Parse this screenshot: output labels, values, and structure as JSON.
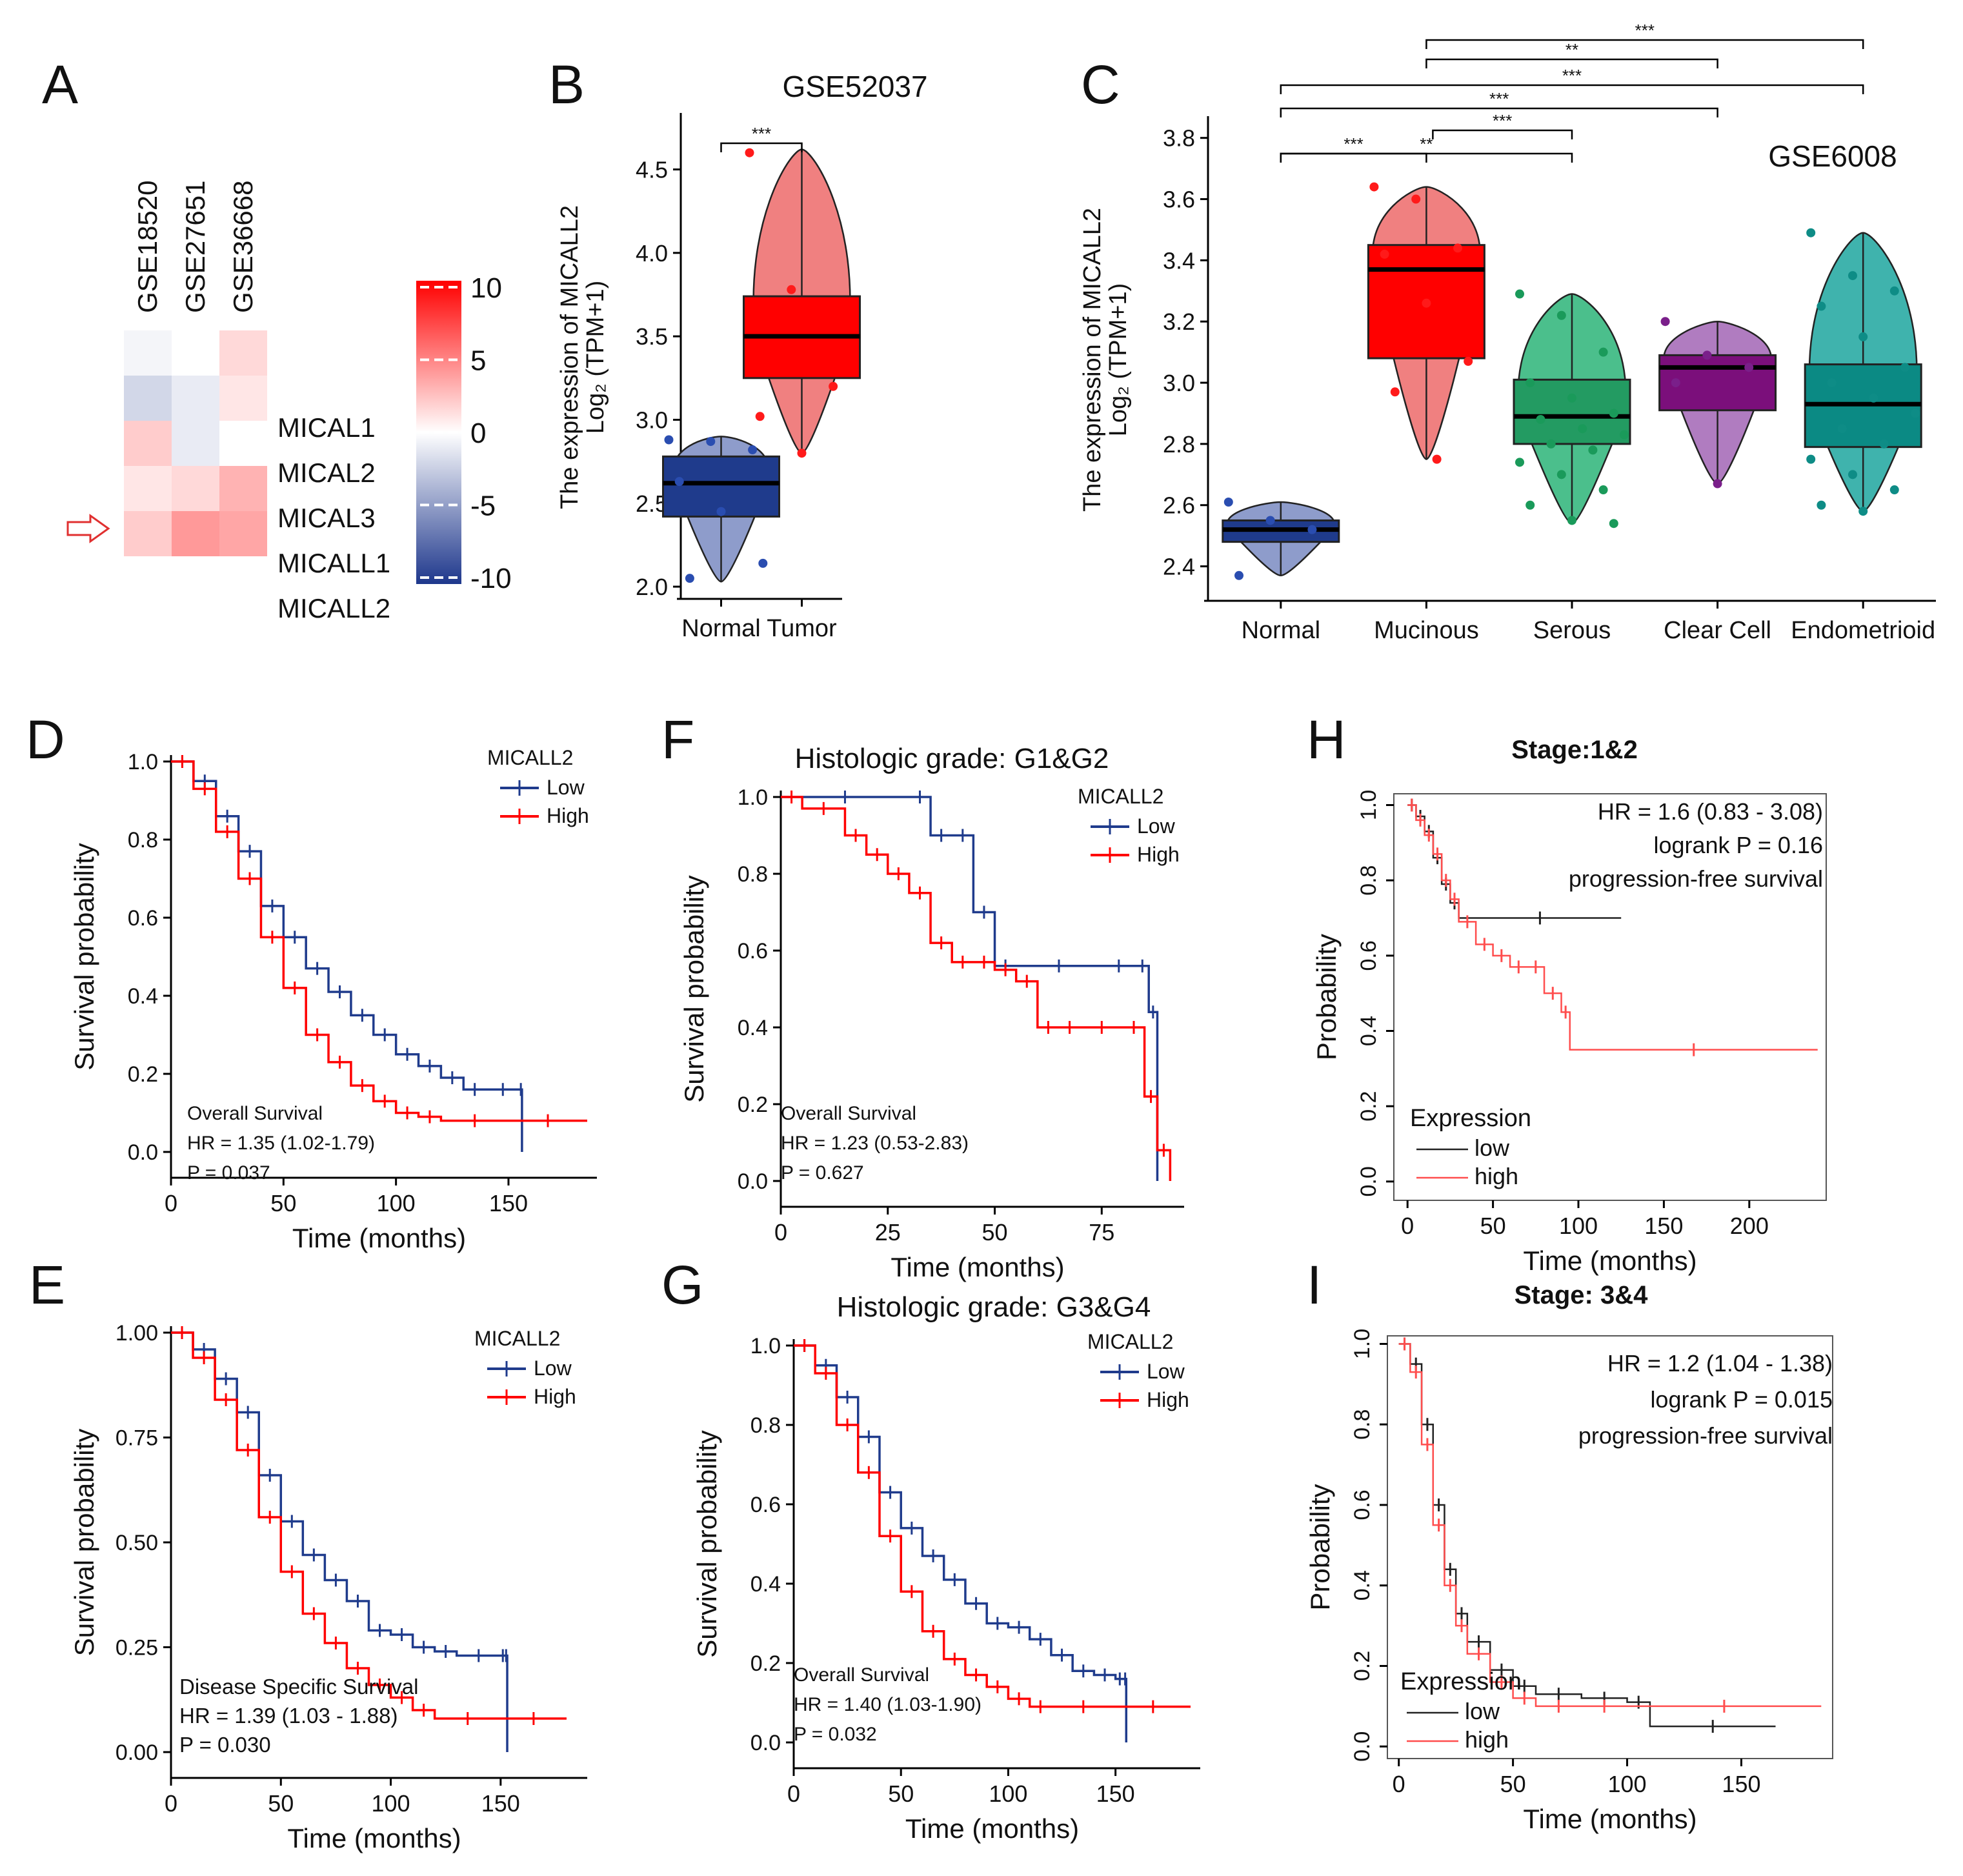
{
  "panel_letters": [
    "A",
    "B",
    "C",
    "D",
    "E",
    "F",
    "G",
    "H",
    "I"
  ],
  "colors": {
    "normal_box": "#1f3b8c",
    "normal_violin": "#8e9ccb",
    "tumor_box": "#ff0000",
    "tumor_violin": "#f08080",
    "serous": "#239b62",
    "clearcell": "#7b0f7b",
    "endometrioid": "#0b8a84",
    "km_low": "#1f3b8c",
    "km_high": "#ff0000",
    "kmp_low": "#222222",
    "kmp_high": "#ff4d4d"
  },
  "chart_data": [
    {
      "panel": "A",
      "type": "heatmap",
      "columns": [
        "GSE18520",
        "GSE27651",
        "GSE36668"
      ],
      "rows": [
        "",
        "MICAL1",
        "MICAL2",
        "MICAL3",
        "MICALL1",
        "MICALL2"
      ],
      "values": [
        [
          -0.5,
          0,
          1.5
        ],
        [
          -2,
          -1,
          1
        ],
        [
          2,
          -1,
          0
        ],
        [
          1,
          1.5,
          3
        ],
        [
          2,
          4,
          3.5
        ]
      ],
      "colorbar": {
        "ticks": [
          "10",
          "5",
          "0",
          "-5",
          "-10"
        ],
        "range": [
          -10,
          10
        ]
      },
      "highlight": "MICALL2"
    },
    {
      "panel": "B",
      "type": "box",
      "title": "GSE52037",
      "ylabel_line1": "The expression of MICALL2",
      "ylabel_line2": "Log₂ (TPM+1)",
      "ylim": [
        1.95,
        4.8
      ],
      "yticks": [
        "2.0",
        "2.5",
        "3.0",
        "3.5",
        "4.0",
        "4.5"
      ],
      "categories": [
        "Normal",
        "Tumor"
      ],
      "boxes": [
        {
          "name": "Normal",
          "q1": 2.42,
          "median": 2.62,
          "q3": 2.78,
          "min": 2.03,
          "max": 2.9
        },
        {
          "name": "Tumor",
          "q1": 3.25,
          "median": 3.5,
          "q3": 3.74,
          "min": 2.8,
          "max": 4.62
        }
      ],
      "points": [
        [
          2.88,
          2.87,
          2.82,
          2.63,
          2.45,
          2.14,
          2.05
        ],
        [
          4.6,
          3.78,
          3.2,
          3.02,
          2.8
        ]
      ],
      "sig": [
        {
          "from": 0,
          "to": 1,
          "label": "***"
        }
      ]
    },
    {
      "panel": "C",
      "type": "box",
      "title": "GSE6008",
      "ylabel_line1": "The expression of MICALL2",
      "ylabel_line2": "Log₂ (TPM+1)",
      "ylim": [
        2.3,
        3.85
      ],
      "yticks": [
        "2.4",
        "2.6",
        "2.8",
        "3.0",
        "3.2",
        "3.4",
        "3.6",
        "3.8"
      ],
      "categories": [
        "Normal",
        "Mucinous",
        "Serous",
        "Clear Cell",
        "Endometrioid"
      ],
      "boxes": [
        {
          "name": "Normal",
          "q1": 2.48,
          "median": 2.52,
          "q3": 2.55,
          "min": 2.37,
          "max": 2.61
        },
        {
          "name": "Mucinous",
          "q1": 3.08,
          "median": 3.37,
          "q3": 3.45,
          "min": 2.75,
          "max": 3.64
        },
        {
          "name": "Serous",
          "q1": 2.8,
          "median": 2.89,
          "q3": 3.01,
          "min": 2.54,
          "max": 3.29
        },
        {
          "name": "Clear Cell",
          "q1": 2.91,
          "median": 3.05,
          "q3": 3.09,
          "min": 2.67,
          "max": 3.2
        },
        {
          "name": "Endometrioid",
          "q1": 2.79,
          "median": 2.93,
          "q3": 3.06,
          "min": 2.58,
          "max": 3.49
        }
      ],
      "points": [
        [
          2.61,
          2.55,
          2.52,
          2.37
        ],
        [
          3.64,
          3.6,
          3.44,
          3.42,
          3.26,
          3.07,
          2.97,
          2.75
        ],
        [
          3.29,
          3.22,
          3.1,
          3.0,
          2.95,
          2.9,
          2.88,
          2.85,
          2.83,
          2.8,
          2.78,
          2.74,
          2.7,
          2.65,
          2.6,
          2.55,
          2.54
        ],
        [
          3.2,
          3.09,
          3.05,
          3.0,
          2.67
        ],
        [
          3.49,
          3.35,
          3.3,
          3.25,
          3.15,
          3.05,
          3.0,
          2.95,
          2.9,
          2.85,
          2.8,
          2.75,
          2.7,
          2.65,
          2.6,
          2.58
        ]
      ],
      "sig": [
        {
          "from": 0,
          "to": 1,
          "label": "***"
        },
        {
          "from": 1,
          "to": 2,
          "label": "***"
        },
        {
          "from": 0,
          "to": 2,
          "label": "**"
        },
        {
          "from": 0,
          "to": 3,
          "label": "***"
        },
        {
          "from": 0,
          "to": 4,
          "label": "***"
        },
        {
          "from": 1,
          "to": 3,
          "label": "**"
        },
        {
          "from": 1,
          "to": 4,
          "label": "***"
        }
      ]
    },
    {
      "panel": "D",
      "type": "line",
      "style": "km",
      "ylabel": "Survival probability",
      "xlabel": "Time (months)",
      "xlim": [
        0,
        185
      ],
      "ylim": [
        0,
        1
      ],
      "xticks": [
        "0",
        "50",
        "100",
        "150"
      ],
      "yticks": [
        "0.0",
        "0.2",
        "0.4",
        "0.6",
        "0.8",
        "1.0"
      ],
      "legend_title": "MICALL2",
      "legend": [
        "Low",
        "High"
      ],
      "annotations": [
        "Overall Survival",
        "HR = 1.35 (1.02-1.79)",
        "P = 0.037"
      ],
      "series": [
        {
          "name": "Low",
          "x": [
            0,
            10,
            20,
            30,
            40,
            50,
            60,
            70,
            80,
            90,
            100,
            110,
            120,
            130,
            140,
            155,
            156
          ],
          "y": [
            1.0,
            0.95,
            0.86,
            0.77,
            0.63,
            0.55,
            0.47,
            0.41,
            0.35,
            0.3,
            0.25,
            0.22,
            0.19,
            0.16,
            0.16,
            0.16,
            0.0
          ]
        },
        {
          "name": "High",
          "x": [
            0,
            10,
            20,
            30,
            40,
            50,
            60,
            70,
            80,
            90,
            100,
            110,
            120,
            150,
            185
          ],
          "y": [
            1.0,
            0.93,
            0.82,
            0.7,
            0.55,
            0.42,
            0.3,
            0.23,
            0.17,
            0.13,
            0.1,
            0.09,
            0.08,
            0.08,
            0.08
          ]
        }
      ]
    },
    {
      "panel": "E",
      "type": "line",
      "style": "km",
      "ylabel": "Survival probability",
      "xlabel": "Time (months)",
      "xlim": [
        0,
        185
      ],
      "ylim": [
        0,
        1
      ],
      "xticks": [
        "0",
        "50",
        "100",
        "150"
      ],
      "yticks": [
        "0.00",
        "0.25",
        "0.50",
        "0.75",
        "1.00"
      ],
      "legend_title": "MICALL2",
      "legend": [
        "Low",
        "High"
      ],
      "annotations": [
        "Disease Specific Survival",
        "HR = 1.39 (1.03 -  1.88)",
        "P = 0.030"
      ],
      "series": [
        {
          "name": "Low",
          "x": [
            0,
            10,
            20,
            30,
            40,
            50,
            60,
            70,
            80,
            90,
            100,
            110,
            120,
            130,
            150,
            152,
            153
          ],
          "y": [
            1.0,
            0.96,
            0.89,
            0.81,
            0.66,
            0.55,
            0.47,
            0.41,
            0.36,
            0.29,
            0.28,
            0.25,
            0.24,
            0.23,
            0.23,
            0.23,
            0.0
          ]
        },
        {
          "name": "High",
          "x": [
            0,
            10,
            20,
            30,
            40,
            50,
            60,
            70,
            80,
            90,
            100,
            110,
            120,
            150,
            180
          ],
          "y": [
            1.0,
            0.94,
            0.84,
            0.72,
            0.56,
            0.43,
            0.33,
            0.26,
            0.2,
            0.16,
            0.13,
            0.1,
            0.08,
            0.08,
            0.08
          ]
        }
      ]
    },
    {
      "panel": "F",
      "type": "line",
      "style": "km",
      "title": "Histologic grade: G1&G2",
      "ylabel": "Survival probability",
      "xlabel": "Time (months)",
      "xlim": [
        0,
        92
      ],
      "ylim": [
        0,
        1
      ],
      "xticks": [
        "0",
        "25",
        "50",
        "75"
      ],
      "yticks": [
        "0.0",
        "0.2",
        "0.4",
        "0.6",
        "0.8",
        "1.0"
      ],
      "legend_title": "MICALL2",
      "legend": [
        "Low",
        "High"
      ],
      "annotations": [
        "Overall Survival",
        "HR = 1.23 (0.53-2.83)",
        "P = 0.627"
      ],
      "series": [
        {
          "name": "Low",
          "x": [
            0,
            30,
            35,
            40,
            45,
            50,
            55,
            75,
            83,
            86,
            88
          ],
          "y": [
            1.0,
            1.0,
            0.9,
            0.9,
            0.7,
            0.56,
            0.56,
            0.56,
            0.56,
            0.44,
            0.0
          ]
        },
        {
          "name": "High",
          "x": [
            0,
            5,
            15,
            20,
            25,
            30,
            35,
            40,
            45,
            50,
            55,
            60,
            65,
            70,
            80,
            85,
            88,
            91
          ],
          "y": [
            1.0,
            0.97,
            0.9,
            0.85,
            0.8,
            0.75,
            0.62,
            0.57,
            0.57,
            0.55,
            0.52,
            0.4,
            0.4,
            0.4,
            0.4,
            0.22,
            0.08,
            0.0
          ]
        }
      ]
    },
    {
      "panel": "G",
      "type": "line",
      "style": "km",
      "title": "Histologic grade: G3&G4",
      "ylabel": "Survival probability",
      "xlabel": "Time (months)",
      "xlim": [
        0,
        185
      ],
      "ylim": [
        0,
        1
      ],
      "xticks": [
        "0",
        "50",
        "100",
        "150"
      ],
      "yticks": [
        "0.0",
        "0.2",
        "0.4",
        "0.6",
        "0.8",
        "1.0"
      ],
      "legend_title": "MICALL2",
      "legend": [
        "Low",
        "High"
      ],
      "annotations": [
        "Overall Survival",
        "HR = 1.40 (1.03-1.90)",
        "P = 0.032"
      ],
      "series": [
        {
          "name": "Low",
          "x": [
            0,
            10,
            20,
            30,
            40,
            50,
            60,
            70,
            80,
            90,
            100,
            110,
            120,
            130,
            140,
            150,
            154,
            155
          ],
          "y": [
            1.0,
            0.95,
            0.87,
            0.77,
            0.63,
            0.54,
            0.47,
            0.41,
            0.35,
            0.3,
            0.29,
            0.26,
            0.22,
            0.18,
            0.17,
            0.16,
            0.16,
            0.0
          ]
        },
        {
          "name": "High",
          "x": [
            0,
            10,
            20,
            30,
            40,
            50,
            60,
            70,
            80,
            90,
            100,
            110,
            120,
            150,
            185
          ],
          "y": [
            1.0,
            0.93,
            0.8,
            0.68,
            0.52,
            0.38,
            0.28,
            0.21,
            0.17,
            0.14,
            0.11,
            0.09,
            0.09,
            0.09,
            0.09
          ]
        }
      ]
    },
    {
      "panel": "H",
      "type": "line",
      "style": "kmp",
      "title": "Stage:1&2",
      "ylabel": "Probability",
      "xlabel": "Time (months)",
      "xlim": [
        -8,
        245
      ],
      "ylim": [
        -0.05,
        1.03
      ],
      "xticks": [
        "0",
        "50",
        "100",
        "150",
        "200"
      ],
      "yticks": [
        "0.0",
        "0.2",
        "0.4",
        "0.6",
        "0.8",
        "1.0"
      ],
      "legend_title": "Expression",
      "legend": [
        "low",
        "high"
      ],
      "annotations": [
        "HR = 1.6 (0.83 - 3.08)",
        "logrank P = 0.16",
        "progression-free survival"
      ],
      "series": [
        {
          "name": "low",
          "x": [
            0,
            5,
            10,
            15,
            20,
            25,
            30,
            125
          ],
          "y": [
            1.0,
            0.97,
            0.93,
            0.86,
            0.79,
            0.74,
            0.7,
            0.7
          ]
        },
        {
          "name": "high",
          "x": [
            0,
            5,
            10,
            15,
            20,
            25,
            30,
            40,
            50,
            60,
            70,
            80,
            90,
            95,
            240
          ],
          "y": [
            1.0,
            0.96,
            0.92,
            0.87,
            0.8,
            0.75,
            0.69,
            0.63,
            0.6,
            0.57,
            0.57,
            0.5,
            0.45,
            0.35,
            0.35
          ]
        }
      ]
    },
    {
      "panel": "I",
      "type": "line",
      "style": "kmp",
      "title": "Stage: 3&4",
      "ylabel": "Probability",
      "xlabel": "Time (months)",
      "xlim": [
        -5,
        190
      ],
      "ylim": [
        -0.03,
        1.02
      ],
      "xticks": [
        "0",
        "50",
        "100",
        "150"
      ],
      "yticks": [
        "0.0",
        "0.2",
        "0.4",
        "0.6",
        "0.8",
        "1.0"
      ],
      "legend_title": "Expression",
      "legend": [
        "low",
        "high"
      ],
      "annotations": [
        "HR = 1.2 (1.04 - 1.38)",
        "logrank P = 0.015",
        "progression-free survival"
      ],
      "series": [
        {
          "name": "low",
          "x": [
            0,
            5,
            10,
            15,
            20,
            25,
            30,
            40,
            50,
            60,
            80,
            100,
            110,
            165
          ],
          "y": [
            1.0,
            0.95,
            0.8,
            0.6,
            0.44,
            0.33,
            0.26,
            0.19,
            0.15,
            0.13,
            0.12,
            0.11,
            0.05,
            0.05
          ]
        },
        {
          "name": "high",
          "x": [
            0,
            5,
            10,
            15,
            20,
            25,
            30,
            40,
            50,
            60,
            80,
            100,
            185
          ],
          "y": [
            1.0,
            0.93,
            0.75,
            0.55,
            0.4,
            0.3,
            0.23,
            0.16,
            0.12,
            0.1,
            0.1,
            0.1,
            0.1
          ]
        }
      ]
    }
  ]
}
